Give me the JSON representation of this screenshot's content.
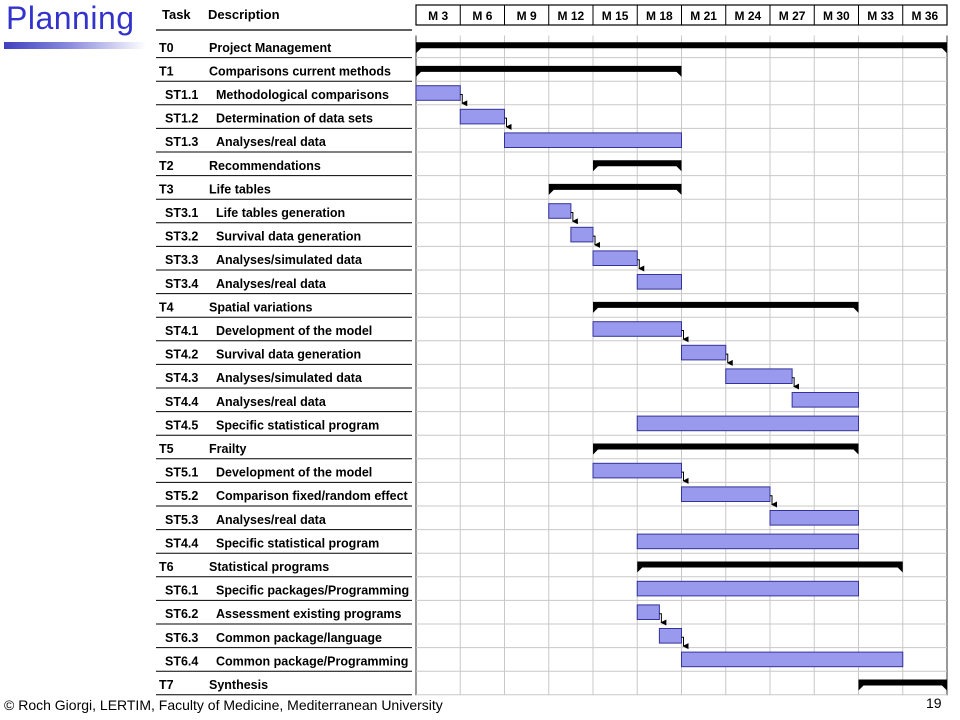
{
  "slide": {
    "title": "Planning",
    "footer": "© Roch Giorgi, LERTIM, Faculty of Medicine, Mediterranean University",
    "page_number": "19",
    "colors": {
      "title": "#3333cc",
      "bar_fill": "#9999ee",
      "bar_stroke": "#333399",
      "summary": "#000000"
    }
  },
  "chart_data": {
    "type": "gantt",
    "columns": {
      "task": "Task",
      "description": "Description"
    },
    "months": [
      "M 3",
      "M 6",
      "M 9",
      "M 12",
      "M 15",
      "M 18",
      "M 21",
      "M 24",
      "M 27",
      "M 30",
      "M 33",
      "M 36"
    ],
    "time_range_months": [
      0,
      36
    ],
    "rows": [
      {
        "id": "T0",
        "desc": "Project Management",
        "kind": "summary",
        "start": 0,
        "end": 36
      },
      {
        "id": "T1",
        "desc": "Comparisons current methods",
        "kind": "summary",
        "start": 0,
        "end": 18
      },
      {
        "id": "ST1.1",
        "desc": "Methodological comparisons",
        "kind": "task",
        "start": 0,
        "end": 3
      },
      {
        "id": "ST1.2",
        "desc": "Determination of data sets",
        "kind": "task",
        "start": 3,
        "end": 6
      },
      {
        "id": "ST1.3",
        "desc": "Analyses/real data",
        "kind": "task",
        "start": 6,
        "end": 18
      },
      {
        "id": "T2",
        "desc": "Recommendations",
        "kind": "summary",
        "start": 12,
        "end": 18
      },
      {
        "id": "T3",
        "desc": "Life tables",
        "kind": "summary",
        "start": 9,
        "end": 18
      },
      {
        "id": "ST3.1",
        "desc": "Life tables generation",
        "kind": "task",
        "start": 9,
        "end": 10.5
      },
      {
        "id": "ST3.2",
        "desc": "Survival data generation",
        "kind": "task",
        "start": 10.5,
        "end": 12
      },
      {
        "id": "ST3.3",
        "desc": "Analyses/simulated data",
        "kind": "task",
        "start": 12,
        "end": 15
      },
      {
        "id": "ST3.4",
        "desc": "Analyses/real data",
        "kind": "task",
        "start": 15,
        "end": 18
      },
      {
        "id": "T4",
        "desc": "Spatial variations",
        "kind": "summary",
        "start": 12,
        "end": 30
      },
      {
        "id": "ST4.1",
        "desc": "Development of the model",
        "kind": "task",
        "start": 12,
        "end": 18
      },
      {
        "id": "ST4.2",
        "desc": "Survival data generation",
        "kind": "task",
        "start": 18,
        "end": 21
      },
      {
        "id": "ST4.3",
        "desc": "Analyses/simulated data",
        "kind": "task",
        "start": 21,
        "end": 25.5
      },
      {
        "id": "ST4.4",
        "desc": "Analyses/real data",
        "kind": "task",
        "start": 25.5,
        "end": 30
      },
      {
        "id": "ST4.5",
        "desc": "Specific statistical program",
        "kind": "task",
        "start": 15,
        "end": 30
      },
      {
        "id": "T5",
        "desc": "Frailty",
        "kind": "summary",
        "start": 12,
        "end": 30
      },
      {
        "id": "ST5.1",
        "desc": "Development of the model",
        "kind": "task",
        "start": 12,
        "end": 18
      },
      {
        "id": "ST5.2",
        "desc": "Comparison fixed/random effect",
        "kind": "task",
        "start": 18,
        "end": 24
      },
      {
        "id": "ST5.3",
        "desc": "Analyses/real data",
        "kind": "task",
        "start": 24,
        "end": 30
      },
      {
        "id": "ST4.4",
        "desc": "Specific statistical program",
        "kind": "task",
        "start": 15,
        "end": 30
      },
      {
        "id": "T6",
        "desc": "Statistical programs",
        "kind": "summary",
        "start": 15,
        "end": 33
      },
      {
        "id": "ST6.1",
        "desc": "Specific packages/Programming",
        "kind": "task",
        "start": 15,
        "end": 30
      },
      {
        "id": "ST6.2",
        "desc": "Assessment existing programs",
        "kind": "task",
        "start": 15,
        "end": 16.5
      },
      {
        "id": "ST6.3",
        "desc": "Common package/language",
        "kind": "task",
        "start": 16.5,
        "end": 18
      },
      {
        "id": "ST6.4",
        "desc": "Common package/Programming",
        "kind": "task",
        "start": 18,
        "end": 33
      },
      {
        "id": "T7",
        "desc": "Synthesis",
        "kind": "summary",
        "start": 30,
        "end": 36
      }
    ],
    "dependencies": [
      [
        2,
        3
      ],
      [
        3,
        4
      ],
      [
        7,
        8
      ],
      [
        8,
        9
      ],
      [
        9,
        10
      ],
      [
        12,
        13
      ],
      [
        13,
        14
      ],
      [
        14,
        15
      ],
      [
        18,
        19
      ],
      [
        19,
        20
      ],
      [
        24,
        25
      ],
      [
        25,
        26
      ]
    ]
  }
}
